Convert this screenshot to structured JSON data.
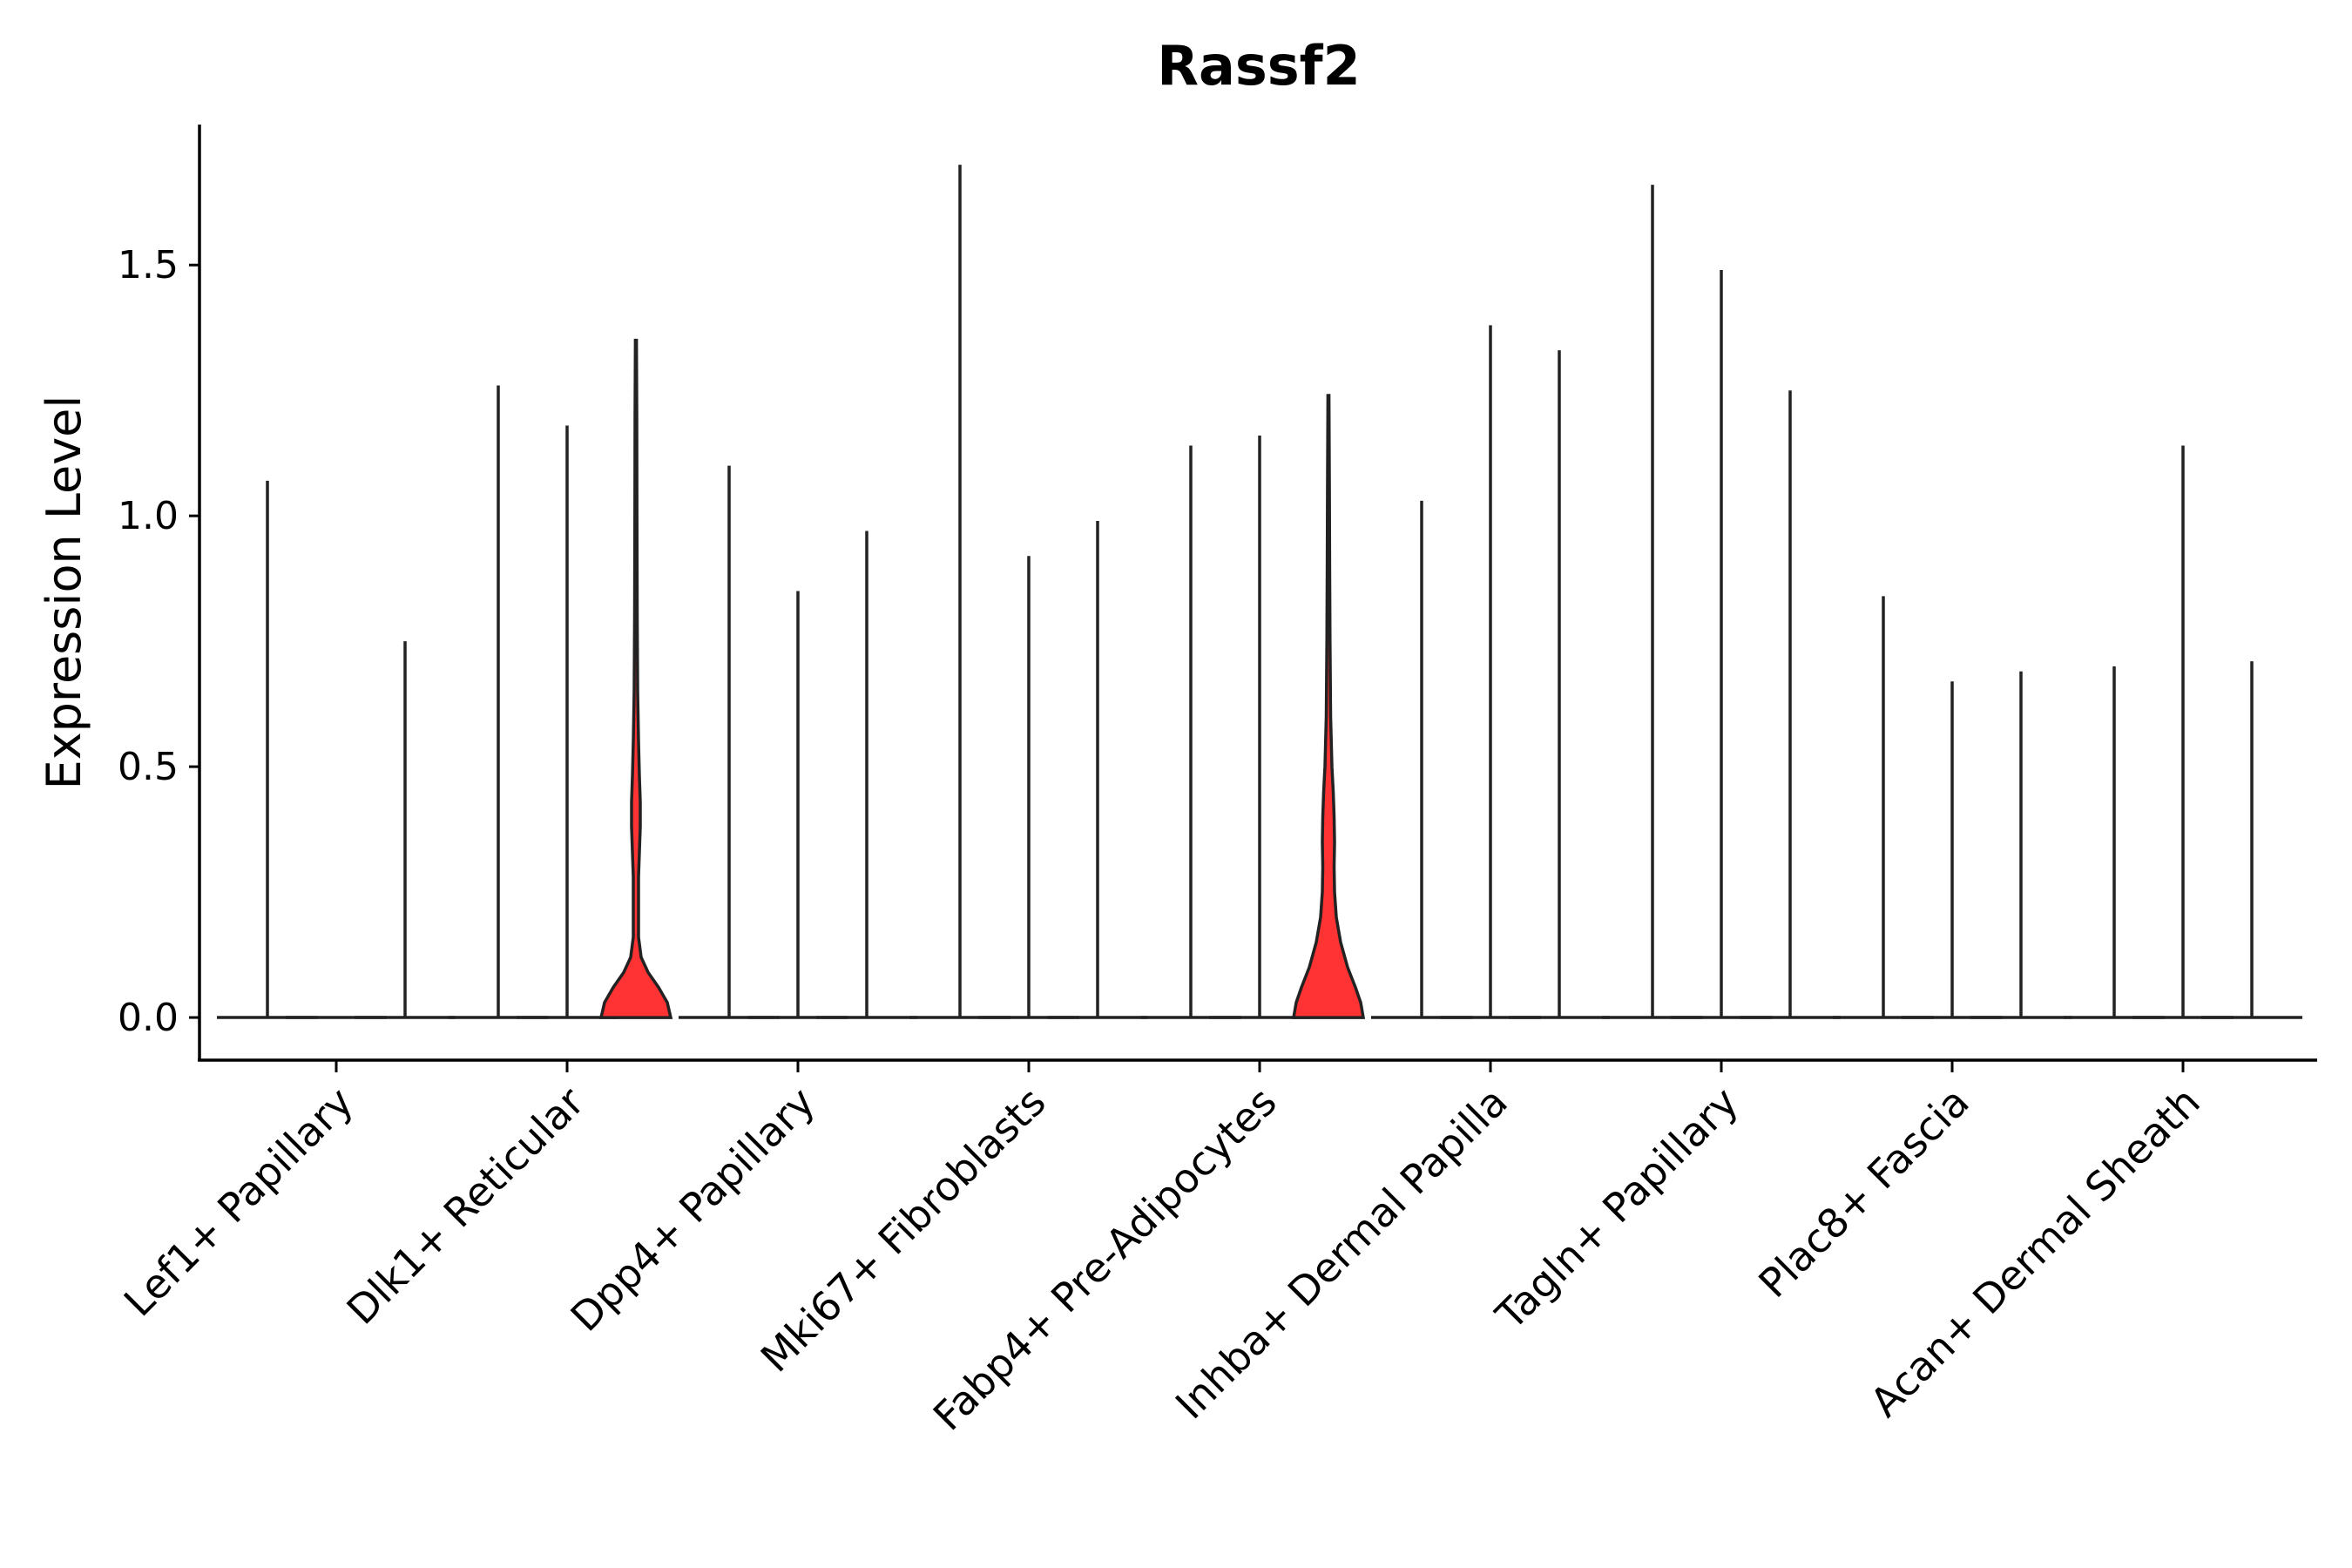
{
  "chart_data": {
    "type": "violin",
    "title": "Rassf2",
    "ylabel": "Expression Level",
    "xlabel": "",
    "ylim": [
      -0.085,
      1.78
    ],
    "yticks": [
      0.0,
      0.5,
      1.0,
      1.5
    ],
    "ytick_labels": [
      "0.0",
      "0.5",
      "1.0",
      "1.5"
    ],
    "grid": false,
    "highlight_color": "#ff3333",
    "line_color": "#222222",
    "categories": [
      "Lef1+ Papillary",
      "Dlk1+ Reticular",
      "Dpp4+ Papillary",
      "Mki67+ Fibroblasts",
      "Fabp4+ Pre-Adipocytes",
      "Inhba+ Dermal Papilla",
      "Tagln+ Papillary",
      "Plac8+ Fascia",
      "Acan+ Dermal Sheath"
    ],
    "series_per_category": 3,
    "violins": [
      {
        "category": 0,
        "slot": 0,
        "max": 1.07,
        "filled": false
      },
      {
        "category": 0,
        "slot": 1,
        "max": 0.0,
        "filled": false
      },
      {
        "category": 0,
        "slot": 2,
        "max": 0.75,
        "filled": false
      },
      {
        "category": 1,
        "slot": 0,
        "max": 1.26,
        "filled": false
      },
      {
        "category": 1,
        "slot": 1,
        "max": 1.18,
        "filled": false
      },
      {
        "category": 1,
        "slot": 2,
        "max": 1.35,
        "filled": true,
        "profile": "bimodal"
      },
      {
        "category": 2,
        "slot": 0,
        "max": 1.1,
        "filled": false
      },
      {
        "category": 2,
        "slot": 1,
        "max": 0.85,
        "filled": false
      },
      {
        "category": 2,
        "slot": 2,
        "max": 0.97,
        "filled": false
      },
      {
        "category": 3,
        "slot": 0,
        "max": 1.7,
        "filled": false
      },
      {
        "category": 3,
        "slot": 1,
        "max": 0.92,
        "filled": false
      },
      {
        "category": 3,
        "slot": 2,
        "max": 0.99,
        "filled": false
      },
      {
        "category": 4,
        "slot": 0,
        "max": 1.14,
        "filled": false
      },
      {
        "category": 4,
        "slot": 1,
        "max": 1.16,
        "filled": false
      },
      {
        "category": 4,
        "slot": 2,
        "max": 1.24,
        "filled": true,
        "profile": "broad"
      },
      {
        "category": 5,
        "slot": 0,
        "max": 1.03,
        "filled": false
      },
      {
        "category": 5,
        "slot": 1,
        "max": 1.38,
        "filled": false
      },
      {
        "category": 5,
        "slot": 2,
        "max": 1.33,
        "filled": false
      },
      {
        "category": 6,
        "slot": 0,
        "max": 1.66,
        "filled": false
      },
      {
        "category": 6,
        "slot": 1,
        "max": 1.49,
        "filled": false
      },
      {
        "category": 6,
        "slot": 2,
        "max": 1.25,
        "filled": false
      },
      {
        "category": 7,
        "slot": 0,
        "max": 0.84,
        "filled": false
      },
      {
        "category": 7,
        "slot": 1,
        "max": 0.67,
        "filled": false
      },
      {
        "category": 7,
        "slot": 2,
        "max": 0.69,
        "filled": false
      },
      {
        "category": 8,
        "slot": 0,
        "max": 0.7,
        "filled": false
      },
      {
        "category": 8,
        "slot": 1,
        "max": 1.14,
        "filled": false
      },
      {
        "category": 8,
        "slot": 2,
        "max": 0.71,
        "filled": false
      }
    ]
  }
}
